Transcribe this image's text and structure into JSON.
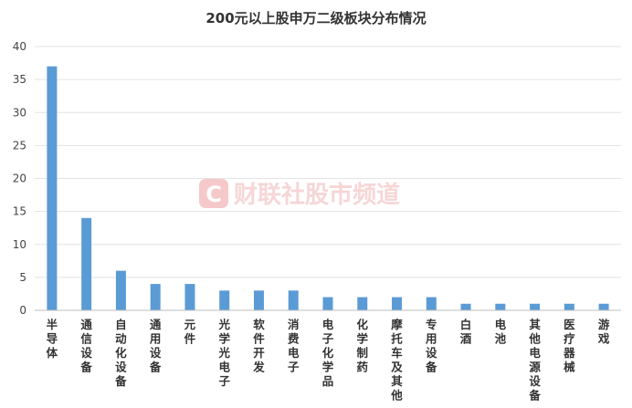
{
  "chart_data": {
    "type": "bar",
    "title": "200元以上股申万二级板块分布情况",
    "xlabel": "",
    "ylabel": "",
    "ylim": [
      0,
      40
    ],
    "yticks": [
      0,
      5,
      10,
      15,
      20,
      25,
      30,
      35,
      40
    ],
    "grid": true,
    "legend": "none",
    "bar_color": "#5b9bd5",
    "categories": [
      "半导体",
      "通信设备",
      "自动化设备",
      "通用设备",
      "元件",
      "光学光电子",
      "软件开发",
      "消费电子",
      "电子化学品",
      "化学制药",
      "摩托车及其他",
      "专用设备",
      "白酒",
      "电池",
      "其他电源设备",
      "医疗器械",
      "游戏"
    ],
    "values": [
      37,
      14,
      6,
      4,
      4,
      3,
      3,
      3,
      2,
      2,
      2,
      2,
      1,
      1,
      1,
      1,
      1
    ]
  },
  "watermark": {
    "logo_letter": "C",
    "text": "财联社股市频道",
    "color": "#e8a5a5"
  }
}
